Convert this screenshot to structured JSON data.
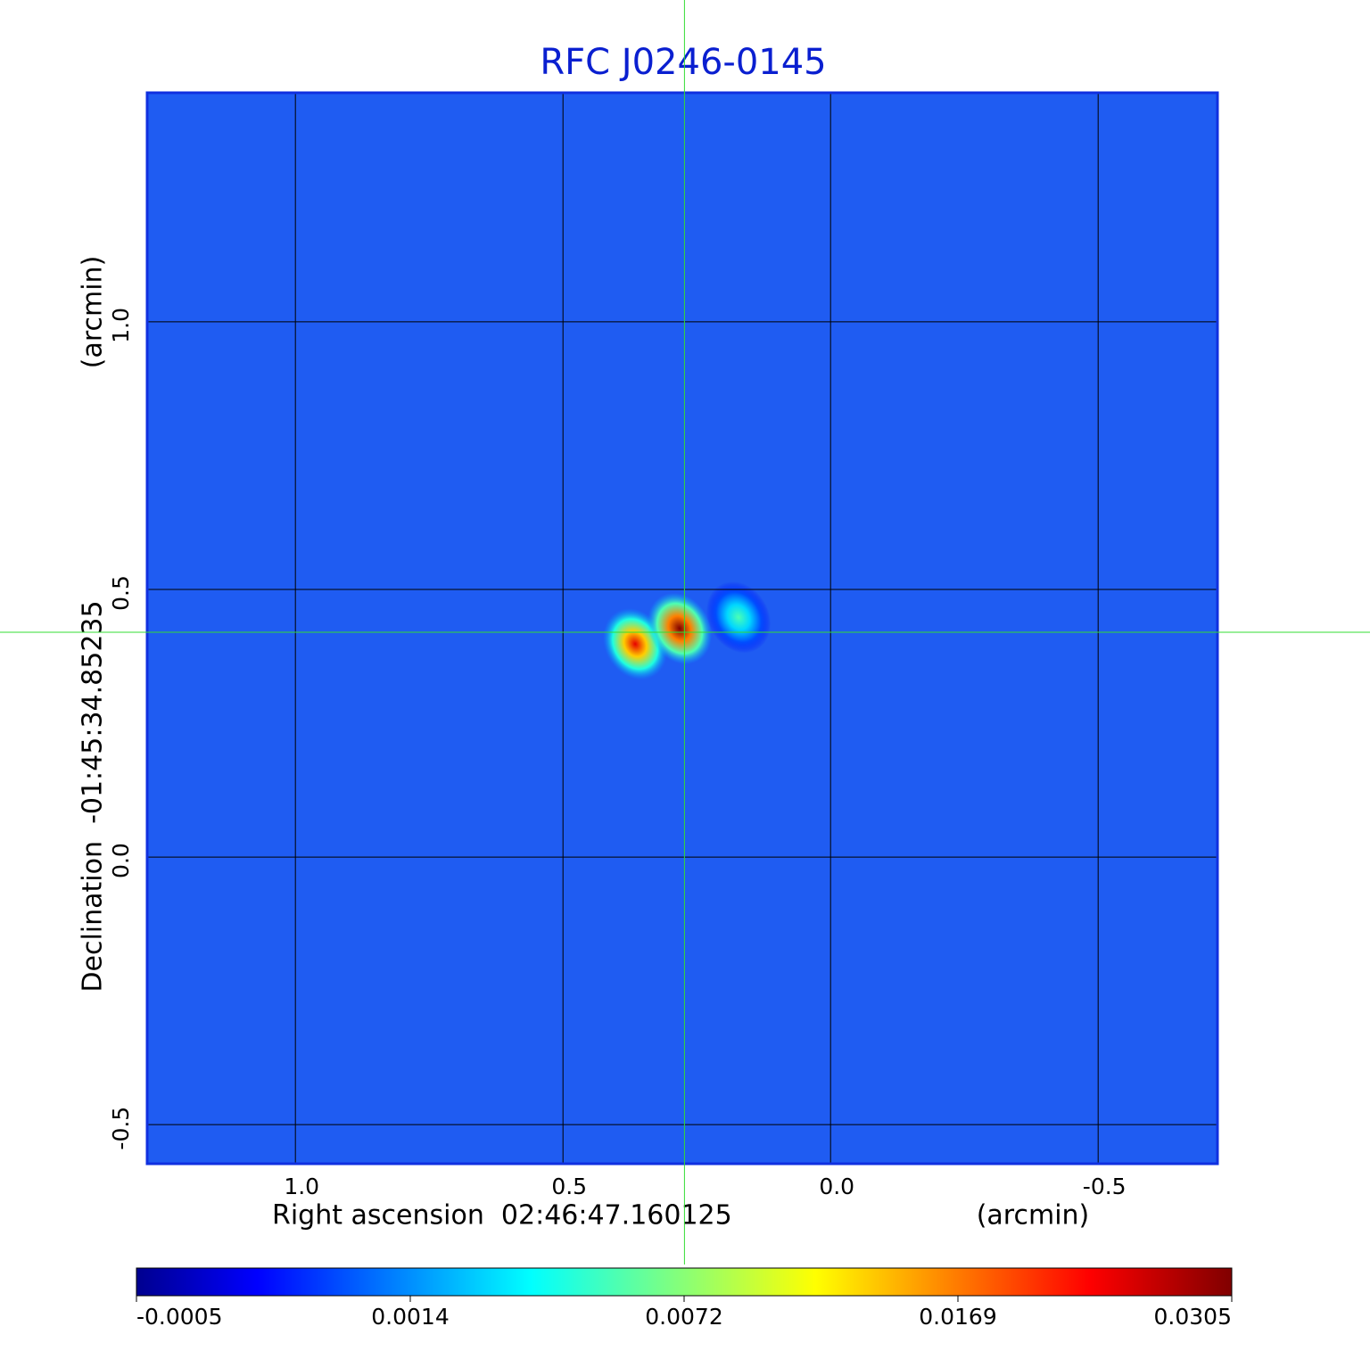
{
  "chart_data": {
    "type": "image",
    "title": "RFC J0246-0145",
    "x_label": "Right ascension  02:46:47.160125",
    "x_unit": "(arcmin)",
    "y_label": "Declination  -01:45:34.85235",
    "y_unit": "(arcmin)",
    "xlim": [
      1.277,
      -0.723
    ],
    "ylim": [
      -0.573,
      1.428
    ],
    "xticks": [
      {
        "value": 1,
        "label": "1.0"
      },
      {
        "value": 0.5,
        "label": "0.5"
      },
      {
        "value": 0,
        "label": "0.0"
      },
      {
        "value": -0.5,
        "label": "-0.5"
      }
    ],
    "yticks": [
      {
        "value": -0.5,
        "label": "-0.5"
      },
      {
        "value": 0,
        "label": "0.0"
      },
      {
        "value": 0.5,
        "label": "0.5"
      },
      {
        "value": 1,
        "label": "1.0"
      }
    ],
    "grid": true,
    "crosshair": {
      "x": 0.273,
      "y": 0.42,
      "color": "#33dd33"
    },
    "sources": {
      "x": [
        0.365,
        0.282,
        0.172
      ],
      "y": [
        0.398,
        0.427,
        0.448
      ],
      "values": [
        0.025,
        0.0305,
        0.006
      ]
    },
    "colorbar": {
      "colormap": "jet",
      "ticks": [
        -0.0005,
        0.0014,
        0.0072,
        0.0169,
        0.0305
      ]
    },
    "background_color": "#1f5cf2",
    "title_color": "#0a1fd0"
  }
}
